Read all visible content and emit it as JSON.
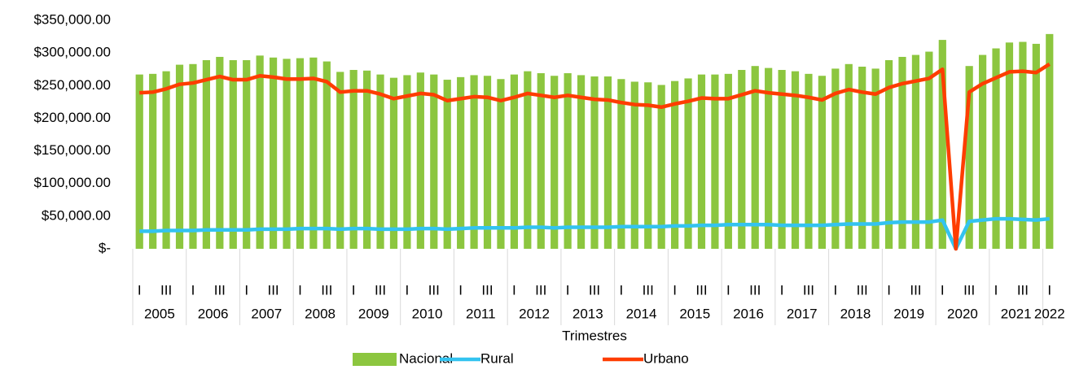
{
  "chart_data": {
    "type": "bar-line",
    "x_title": "Trimestres",
    "categories": [
      "I",
      null,
      "III",
      null,
      "I",
      null,
      "III",
      null,
      "I",
      null,
      "III",
      null,
      "I",
      null,
      "III",
      null,
      "I",
      null,
      "III",
      null,
      "I",
      null,
      "III",
      null,
      "I",
      null,
      "III",
      null,
      "I",
      null,
      "III",
      null,
      "I",
      null,
      "III",
      null,
      "I",
      null,
      "III",
      null,
      "I",
      null,
      "III",
      null,
      "I",
      null,
      "III",
      null,
      "I",
      null,
      "III",
      null,
      "I",
      null,
      "III",
      null,
      "I",
      null,
      "III",
      null,
      "I",
      null,
      "III",
      null,
      "I",
      null,
      "III",
      null,
      "I"
    ],
    "years": [
      "2005",
      "2006",
      "2007",
      "2008",
      "2009",
      "2010",
      "2011",
      "2012",
      "2013",
      "2014",
      "2015",
      "2016",
      "2017",
      "2018",
      "2019",
      "2020",
      "2021",
      "2022"
    ],
    "ylim": [
      0,
      350000
    ],
    "yticks": [
      {
        "value": 0,
        "label": "$-"
      },
      {
        "value": 50000,
        "label": "$50,000.00"
      },
      {
        "value": 100000,
        "label": "$100,000.00"
      },
      {
        "value": 150000,
        "label": "$150,000.00"
      },
      {
        "value": 200000,
        "label": "$200,000.00"
      },
      {
        "value": 250000,
        "label": "$250,000.00"
      },
      {
        "value": 300000,
        "label": "$300,000.00"
      },
      {
        "value": 350000,
        "label": "$350,000.00"
      }
    ],
    "series": [
      {
        "name": "Nacional",
        "kind": "bar",
        "color": "#8cc63f",
        "values": [
          267000,
          268000,
          272000,
          282000,
          283000,
          289000,
          294000,
          289000,
          289000,
          296000,
          293000,
          291000,
          292000,
          293000,
          287000,
          271000,
          274000,
          273000,
          267000,
          262000,
          266000,
          270000,
          267000,
          259000,
          263000,
          266000,
          265000,
          260000,
          267000,
          272000,
          269000,
          265000,
          269000,
          266000,
          264000,
          264000,
          260000,
          256000,
          255000,
          251000,
          257000,
          261000,
          267000,
          267000,
          268000,
          274000,
          280000,
          277000,
          274000,
          272000,
          268000,
          265000,
          276000,
          283000,
          279000,
          276000,
          289000,
          294000,
          297000,
          302000,
          320000,
          0,
          280000,
          297000,
          307000,
          316000,
          317000,
          314000,
          329000
        ]
      },
      {
        "name": "Rural",
        "kind": "line",
        "color": "#33c3f0",
        "values": [
          27000,
          27000,
          28000,
          28000,
          28000,
          29000,
          29000,
          29000,
          29000,
          30000,
          30000,
          30000,
          31000,
          31000,
          31000,
          30000,
          31000,
          31000,
          30000,
          30000,
          30000,
          31000,
          31000,
          30000,
          31000,
          32000,
          32000,
          32000,
          32000,
          33000,
          33000,
          32000,
          33000,
          33000,
          33000,
          33000,
          34000,
          34000,
          34000,
          34000,
          35000,
          35000,
          36000,
          36000,
          37000,
          37000,
          37000,
          37000,
          36000,
          36000,
          36000,
          36000,
          37000,
          38000,
          38000,
          38000,
          40000,
          41000,
          41000,
          41000,
          44000,
          0,
          42000,
          44000,
          46000,
          46000,
          45000,
          44000,
          46000
        ]
      },
      {
        "name": "Urbano",
        "kind": "line",
        "color": "#fe3d00",
        "values": [
          239000,
          240000,
          245000,
          252000,
          254000,
          259000,
          264000,
          259000,
          259000,
          265000,
          263000,
          260000,
          260000,
          261000,
          256000,
          240000,
          242000,
          242000,
          237000,
          230000,
          234000,
          238000,
          236000,
          227000,
          230000,
          233000,
          232000,
          227000,
          232000,
          238000,
          235000,
          232000,
          235000,
          232000,
          229000,
          228000,
          224000,
          221000,
          220000,
          217000,
          222000,
          226000,
          231000,
          230000,
          230000,
          236000,
          242000,
          239000,
          237000,
          235000,
          232000,
          228000,
          238000,
          244000,
          240000,
          237000,
          247000,
          253000,
          257000,
          261000,
          275000,
          0,
          240000,
          253000,
          262000,
          271000,
          272000,
          270000,
          283000
        ]
      }
    ]
  }
}
